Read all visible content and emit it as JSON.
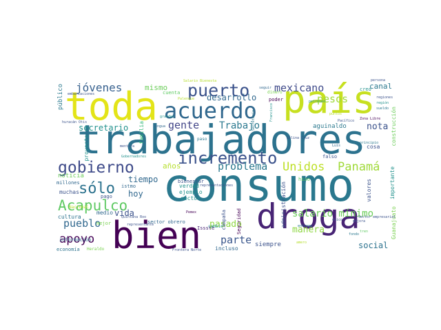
{
  "word_cloud": {
    "palette": "viridis",
    "colors": {
      "background": "#ffffff",
      "purple": "#440154",
      "indigo": "#3b528b",
      "blue": "#31688e",
      "teal": "#21918c",
      "green": "#35b779",
      "lime": "#5ec962",
      "yellow": "#e3e418"
    },
    "words": [
      "consumo",
      "trabajadores",
      "toda",
      "país",
      "bien",
      "droga",
      "acuerdo",
      "incremento",
      "gobierno",
      "puerto",
      "Acapulco",
      "sólo",
      "Unidos",
      "Panamá",
      "problema",
      "jóvenes",
      "mexicano",
      "pesos",
      "apoyo",
      "gente",
      "Trabajo",
      "salario mínimo",
      "parte",
      "pueblo",
      "nota",
      "pasado",
      "manera",
      "social",
      "canal",
      "años",
      "tiempo",
      "hoy",
      "noticia",
      "mismo",
      "desarrollo",
      "secretario",
      "vida",
      "cultura",
      "medio",
      "aguinaldo",
      "siempre",
      "incluso",
      "sector",
      "verdad",
      "ejemplo",
      "muchas",
      "millones",
      "pago",
      "istmo",
      "administración",
      "valores",
      "importante",
      "Guanajuato",
      "construcción",
      "público",
      "proyecto",
      "familia",
      "mejor",
      "bienestar",
      "Seguridad",
      "campaña",
      "Issste",
      "cambio",
      "información",
      "economía",
      "Heraldo",
      "Nacional",
      "sector obrero",
      "Frontera Norte",
      "poder",
      "cuenta",
      "dinero",
      "cosa",
      "hizo",
      "falso",
      "Luis",
      "creo",
      "paso",
      "entrega",
      "mentira",
      "Salario Bienesta",
      "Salina Cruz",
      "Zona Libre",
      "Pacífico",
      "persona",
      "petróleo",
      "seguir",
      "principio",
      "embarcaciones",
      "huracán Otis",
      "grandes",
      "Palenque",
      "Lengua",
      "Quintana Roo",
      "representante",
      "Secretaría",
      "Pemex",
      "Francisco",
      "mejora",
      "tren",
      "sueldo",
      "región",
      "puntos",
      "Gobernadores",
      "fondo",
      "único",
      "regiones",
      "representaciones",
      "amero",
      "Sector empresarial",
      "acción"
    ]
  }
}
